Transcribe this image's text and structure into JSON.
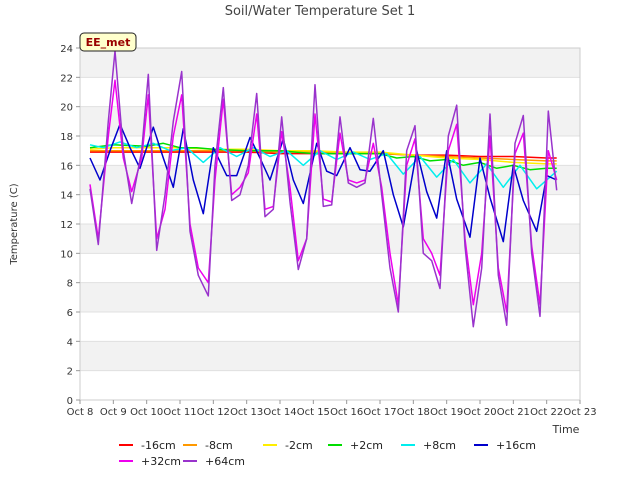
{
  "chart_data": {
    "type": "line",
    "title": "Soil/Water Temperature Set 1",
    "xlabel": "Time",
    "ylabel": "Temperature (C)",
    "badge": "EE_met",
    "ylim": [
      0,
      24
    ],
    "xlim": [
      8,
      23
    ],
    "yticks": [
      0,
      2,
      4,
      6,
      8,
      10,
      12,
      14,
      16,
      18,
      20,
      22,
      24
    ],
    "xticks": [
      {
        "v": 8,
        "label": "Oct 8"
      },
      {
        "v": 9,
        "label": "Oct 9"
      },
      {
        "v": 10,
        "label": "Oct 10"
      },
      {
        "v": 11,
        "label": "Oct 11"
      },
      {
        "v": 12,
        "label": "Oct 12"
      },
      {
        "v": 13,
        "label": "Oct 13"
      },
      {
        "v": 14,
        "label": "Oct 14"
      },
      {
        "v": 15,
        "label": "Oct 15"
      },
      {
        "v": 16,
        "label": "Oct 16"
      },
      {
        "v": 17,
        "label": "Oct 17"
      },
      {
        "v": 18,
        "label": "Oct 18"
      },
      {
        "v": 19,
        "label": "Oct 19"
      },
      {
        "v": 20,
        "label": "Oct 20"
      },
      {
        "v": 21,
        "label": "Oct 21"
      },
      {
        "v": 22,
        "label": "Oct 22"
      },
      {
        "v": 23,
        "label": "Oct 23"
      }
    ],
    "grid": "horizontal bands",
    "legend_position": "bottom",
    "series": [
      {
        "name": "-16cm",
        "color": "#ff0000",
        "x": [
          8.3,
          9,
          10,
          11,
          12,
          13,
          14,
          15,
          16,
          17,
          18,
          19,
          20,
          21,
          22,
          22.3
        ],
        "y": [
          16.9,
          16.9,
          16.9,
          16.9,
          16.9,
          16.9,
          16.8,
          16.8,
          16.8,
          16.8,
          16.7,
          16.7,
          16.6,
          16.6,
          16.5,
          16.5
        ]
      },
      {
        "name": "-8cm",
        "color": "#ff9900",
        "x": [
          8.3,
          9,
          10,
          11,
          12,
          13,
          14,
          15,
          16,
          17,
          18,
          19,
          20,
          21,
          22,
          22.3
        ],
        "y": [
          17.0,
          17.0,
          17.0,
          17.0,
          17.0,
          17.0,
          16.9,
          16.9,
          16.8,
          16.8,
          16.7,
          16.6,
          16.5,
          16.4,
          16.3,
          16.3
        ]
      },
      {
        "name": "-2cm",
        "color": "#ffee00",
        "x": [
          8.3,
          9,
          10,
          11,
          12,
          13,
          14,
          15,
          16,
          17,
          17.5,
          18,
          19,
          20,
          21,
          22,
          22.3
        ],
        "y": [
          17.1,
          17.2,
          17.2,
          17.2,
          17.1,
          17.1,
          17.0,
          17.0,
          16.9,
          16.9,
          16.8,
          16.7,
          16.5,
          16.4,
          16.2,
          16.1,
          16.1
        ]
      },
      {
        "name": "+2cm",
        "color": "#00dd00",
        "x": [
          8.3,
          9,
          10,
          10.5,
          11,
          11.5,
          12,
          13,
          14,
          15,
          16,
          17,
          17.5,
          18,
          18.5,
          19,
          19.5,
          20,
          20.5,
          21,
          21.5,
          22,
          22.3
        ],
        "y": [
          17.2,
          17.4,
          17.3,
          17.5,
          17.2,
          17.2,
          17.1,
          17.0,
          17.0,
          16.8,
          16.8,
          16.8,
          16.5,
          16.6,
          16.3,
          16.4,
          16.0,
          16.2,
          15.8,
          16.0,
          15.7,
          15.8,
          15.8
        ]
      },
      {
        "name": "+8cm",
        "color": "#00eeee",
        "x": [
          8.3,
          8.7,
          9.2,
          9.7,
          10.2,
          10.7,
          11.2,
          11.7,
          12.2,
          12.7,
          13.2,
          13.7,
          14.2,
          14.7,
          15.2,
          15.7,
          16.2,
          16.7,
          17.2,
          17.7,
          18.2,
          18.7,
          19.2,
          19.7,
          20.2,
          20.7,
          21.2,
          21.7,
          22.3
        ],
        "y": [
          17.4,
          17.2,
          17.6,
          17.2,
          17.5,
          17.0,
          17.2,
          16.2,
          17.2,
          16.6,
          17.2,
          16.6,
          17.0,
          16.0,
          17.0,
          16.4,
          16.9,
          16.4,
          16.8,
          15.4,
          16.6,
          15.2,
          16.4,
          14.8,
          16.1,
          14.5,
          16.0,
          14.4,
          15.6
        ]
      },
      {
        "name": "+16cm",
        "color": "#0000cc",
        "x": [
          8.3,
          8.6,
          8.9,
          9.2,
          9.5,
          9.8,
          10.2,
          10.5,
          10.8,
          11.1,
          11.4,
          11.7,
          12.0,
          12.4,
          12.7,
          13.1,
          13.4,
          13.7,
          14.1,
          14.4,
          14.7,
          15.1,
          15.4,
          15.7,
          16.1,
          16.4,
          16.7,
          17.1,
          17.4,
          17.7,
          18.1,
          18.4,
          18.7,
          19.0,
          19.3,
          19.7,
          20.0,
          20.3,
          20.7,
          21.0,
          21.3,
          21.7,
          22.0,
          22.3
        ],
        "y": [
          16.5,
          15.0,
          17.0,
          18.8,
          17.2,
          15.8,
          18.6,
          16.5,
          14.5,
          18.5,
          15.0,
          12.7,
          17.2,
          15.3,
          15.3,
          17.9,
          16.5,
          15.0,
          17.8,
          15.0,
          13.4,
          17.5,
          15.6,
          15.3,
          17.2,
          15.7,
          15.6,
          17.0,
          14.0,
          11.8,
          17.0,
          14.2,
          12.4,
          17.0,
          13.7,
          11.1,
          16.5,
          13.8,
          10.8,
          16.0,
          13.6,
          11.5,
          15.3,
          15.0
        ]
      },
      {
        "name": "+32cm",
        "color": "#ee00ee",
        "x": [
          8.3,
          8.55,
          8.85,
          9.05,
          9.3,
          9.55,
          9.85,
          10.05,
          10.3,
          10.55,
          10.8,
          11.05,
          11.3,
          11.55,
          11.85,
          12.05,
          12.3,
          12.55,
          12.8,
          13.05,
          13.3,
          13.55,
          13.8,
          14.05,
          14.3,
          14.55,
          14.8,
          15.05,
          15.3,
          15.55,
          15.8,
          16.05,
          16.3,
          16.55,
          16.8,
          17.05,
          17.3,
          17.55,
          17.8,
          18.05,
          18.3,
          18.55,
          18.8,
          19.05,
          19.3,
          19.55,
          19.8,
          20.05,
          20.3,
          20.55,
          20.8,
          21.05,
          21.3,
          21.55,
          21.8,
          22.05,
          22.3
        ],
        "y": [
          14.7,
          11.0,
          18.0,
          21.8,
          16.5,
          14.2,
          16.5,
          20.8,
          11.0,
          13.0,
          18.0,
          20.8,
          12.0,
          9.0,
          8.0,
          15.0,
          20.5,
          14.0,
          14.5,
          15.5,
          19.5,
          13.0,
          13.2,
          18.3,
          14.5,
          9.5,
          11.0,
          19.5,
          13.7,
          13.5,
          18.2,
          15.0,
          14.8,
          15.0,
          17.5,
          14.5,
          10.0,
          6.5,
          16.0,
          17.8,
          11.0,
          10.0,
          8.5,
          17.0,
          18.8,
          11.0,
          6.5,
          10.0,
          18.0,
          9.0,
          6.0,
          16.8,
          18.2,
          10.5,
          6.5,
          17.0,
          15.0
        ]
      },
      {
        "name": "+64cm",
        "color": "#9933cc",
        "x": [
          8.3,
          8.55,
          8.85,
          9.05,
          9.3,
          9.55,
          9.85,
          10.05,
          10.3,
          10.55,
          10.8,
          11.05,
          11.3,
          11.55,
          11.85,
          12.05,
          12.3,
          12.55,
          12.8,
          13.05,
          13.3,
          13.55,
          13.8,
          14.05,
          14.3,
          14.55,
          14.8,
          15.05,
          15.3,
          15.55,
          15.8,
          16.05,
          16.3,
          16.55,
          16.8,
          17.05,
          17.3,
          17.55,
          17.8,
          18.05,
          18.3,
          18.55,
          18.8,
          19.05,
          19.3,
          19.55,
          19.8,
          20.05,
          20.3,
          20.55,
          20.8,
          21.05,
          21.3,
          21.55,
          21.8,
          22.05,
          22.3
        ],
        "y": [
          14.4,
          10.6,
          19.0,
          23.8,
          17.0,
          13.4,
          17.0,
          22.2,
          10.2,
          14.0,
          19.0,
          22.4,
          11.5,
          8.5,
          7.1,
          16.0,
          21.3,
          13.6,
          14.0,
          16.0,
          20.9,
          12.5,
          13.0,
          19.3,
          13.5,
          8.9,
          11.0,
          21.5,
          13.2,
          13.3,
          19.3,
          14.8,
          14.5,
          14.8,
          19.2,
          14.0,
          9.0,
          6.0,
          17.0,
          18.7,
          10.0,
          9.5,
          7.6,
          18.0,
          20.1,
          10.5,
          5.0,
          9.0,
          19.5,
          8.5,
          5.1,
          17.5,
          19.4,
          10.0,
          5.7,
          19.7,
          14.3
        ]
      }
    ]
  }
}
